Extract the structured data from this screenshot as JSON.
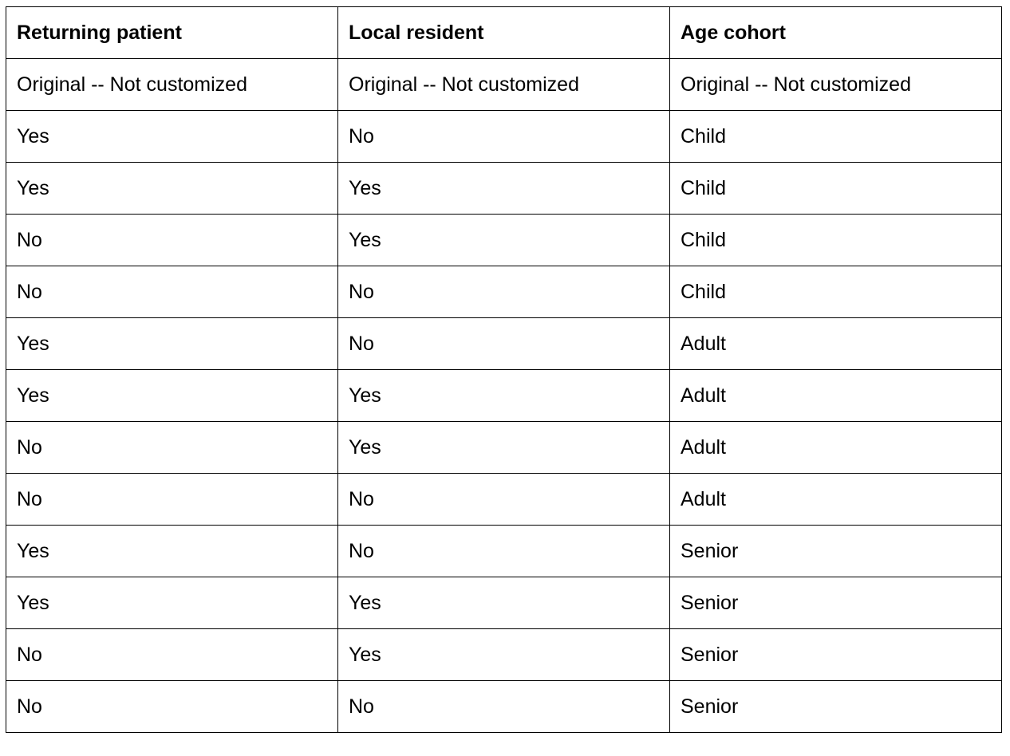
{
  "table": {
    "headers": [
      "Returning patient",
      "Local resident",
      "Age cohort"
    ],
    "rows": [
      [
        "Original -- Not customized",
        "Original -- Not customized",
        "Original -- Not customized"
      ],
      [
        "Yes",
        "No",
        "Child"
      ],
      [
        "Yes",
        "Yes",
        "Child"
      ],
      [
        "No",
        "Yes",
        "Child"
      ],
      [
        "No",
        "No",
        "Child"
      ],
      [
        "Yes",
        "No",
        "Adult"
      ],
      [
        "Yes",
        "Yes",
        "Adult"
      ],
      [
        "No",
        "Yes",
        "Adult"
      ],
      [
        "No",
        "No",
        "Adult"
      ],
      [
        "Yes",
        "No",
        "Senior"
      ],
      [
        "Yes",
        "Yes",
        "Senior"
      ],
      [
        "No",
        "Yes",
        "Senior"
      ],
      [
        "No",
        "No",
        "Senior"
      ]
    ]
  }
}
